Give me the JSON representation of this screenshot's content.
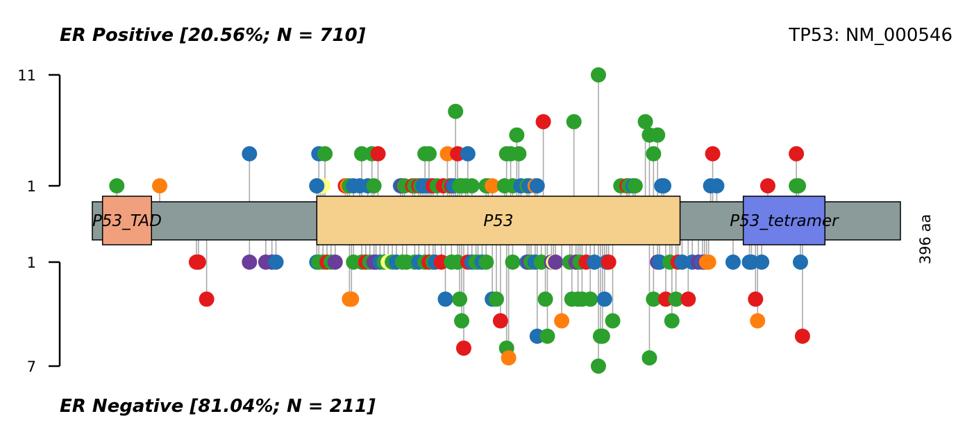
{
  "chart_data": {
    "type": "lollipop",
    "gene_label": "TP53: NM_000546",
    "protein_length": 396,
    "length_label": "396 aa",
    "top_title": "ER Positive [20.56%; N = 710]",
    "bottom_title": "ER Negative [81.04%; N = 211]",
    "top_axis": {
      "ticks": [
        "1",
        "11"
      ],
      "max": 11
    },
    "bottom_axis": {
      "ticks": [
        "1",
        "7"
      ],
      "max": 7
    },
    "colors": {
      "green": "#2ca02c",
      "red": "#e31a1c",
      "blue": "#1f6fb2",
      "orange": "#ff7f0e",
      "purple": "#6a3d9a",
      "yellow": "#ffff88",
      "stem": "#aaaaaa",
      "backbone": "#8a9b9a"
    },
    "domains": [
      {
        "name": "P53_TAD",
        "start": 5,
        "end": 29,
        "color": "#f0a07c"
      },
      {
        "name": "P53",
        "start": 110,
        "end": 288,
        "color": "#f4d08c"
      },
      {
        "name": "P53_tetramer",
        "start": 319,
        "end": 359,
        "color": "#6e7fe8"
      }
    ],
    "top": [
      [
        12,
        1,
        "green"
      ],
      [
        33,
        1,
        "orange"
      ],
      [
        77,
        2,
        "blue"
      ],
      [
        110,
        1,
        "blue"
      ],
      [
        111,
        2,
        "blue"
      ],
      [
        112,
        1,
        "yellow"
      ],
      [
        113,
        1,
        "yellow"
      ],
      [
        114,
        2,
        "green"
      ],
      [
        124,
        1,
        "red"
      ],
      [
        125,
        1,
        "orange"
      ],
      [
        126,
        1,
        "green"
      ],
      [
        128,
        1,
        "blue"
      ],
      [
        131,
        1,
        "blue"
      ],
      [
        132,
        2,
        "green"
      ],
      [
        135,
        1,
        "blue"
      ],
      [
        137,
        2,
        "green"
      ],
      [
        138,
        1,
        "green"
      ],
      [
        140,
        2,
        "red"
      ],
      [
        151,
        1,
        "blue"
      ],
      [
        152,
        1,
        "purple"
      ],
      [
        153,
        1,
        "green"
      ],
      [
        157,
        1,
        "red"
      ],
      [
        158,
        1,
        "green"
      ],
      [
        160,
        1,
        "red"
      ],
      [
        161,
        1,
        "green"
      ],
      [
        162,
        1,
        "blue"
      ],
      [
        163,
        2,
        "green"
      ],
      [
        164,
        1,
        "blue"
      ],
      [
        165,
        2,
        "green"
      ],
      [
        166,
        1,
        "blue"
      ],
      [
        167,
        1,
        "red"
      ],
      [
        169,
        1,
        "green"
      ],
      [
        172,
        1,
        "red"
      ],
      [
        174,
        2,
        "orange"
      ],
      [
        175,
        1,
        "green"
      ],
      [
        176,
        1,
        "red"
      ],
      [
        177,
        1,
        "blue"
      ],
      [
        178,
        5,
        "green"
      ],
      [
        179,
        2,
        "red"
      ],
      [
        180,
        1,
        "green"
      ],
      [
        181,
        1,
        "green"
      ],
      [
        183,
        1,
        "green"
      ],
      [
        184,
        2,
        "blue"
      ],
      [
        186,
        1,
        "green"
      ],
      [
        193,
        1,
        "green"
      ],
      [
        194,
        1,
        "green"
      ],
      [
        196,
        1,
        "orange"
      ],
      [
        202,
        1,
        "green"
      ],
      [
        203,
        2,
        "green"
      ],
      [
        205,
        2,
        "green"
      ],
      [
        206,
        1,
        "green"
      ],
      [
        208,
        3,
        "green"
      ],
      [
        209,
        2,
        "green"
      ],
      [
        210,
        1,
        "blue"
      ],
      [
        213,
        1,
        "green"
      ],
      [
        214,
        1,
        "blue"
      ],
      [
        217,
        1,
        "orange"
      ],
      [
        218,
        1,
        "blue"
      ],
      [
        221,
        4,
        "red"
      ],
      [
        110,
        1,
        "blue"
      ],
      [
        248,
        11,
        "green"
      ],
      [
        236,
        4,
        "green"
      ],
      [
        259,
        1,
        "green"
      ],
      [
        262,
        1,
        "red"
      ],
      [
        263,
        1,
        "green"
      ],
      [
        265,
        1,
        "blue"
      ],
      [
        266,
        1,
        "green"
      ],
      [
        271,
        4,
        "green"
      ],
      [
        273,
        3,
        "green"
      ],
      [
        275,
        2,
        "green"
      ],
      [
        277,
        3,
        "green"
      ],
      [
        279,
        1,
        "blue"
      ],
      [
        280,
        1,
        "blue"
      ],
      [
        303,
        1,
        "blue"
      ],
      [
        304,
        2,
        "red"
      ],
      [
        306,
        1,
        "blue"
      ],
      [
        331,
        1,
        "red"
      ],
      [
        345,
        1,
        "green"
      ],
      [
        346,
        1,
        "green"
      ],
      [
        345,
        2,
        "red"
      ]
    ],
    "bottom": [
      [
        51,
        1,
        "red"
      ],
      [
        52,
        1,
        "red"
      ],
      [
        56,
        2,
        "red"
      ],
      [
        77,
        1,
        "purple"
      ],
      [
        85,
        1,
        "purple"
      ],
      [
        88,
        1,
        "purple"
      ],
      [
        90,
        1,
        "blue"
      ],
      [
        110,
        1,
        "blue"
      ],
      [
        111,
        1,
        "green"
      ],
      [
        113,
        1,
        "green"
      ],
      [
        115,
        1,
        "red"
      ],
      [
        117,
        1,
        "green"
      ],
      [
        119,
        1,
        "purple"
      ],
      [
        126,
        2,
        "orange"
      ],
      [
        127,
        2,
        "orange"
      ],
      [
        128,
        1,
        "green"
      ],
      [
        132,
        1,
        "green"
      ],
      [
        134,
        1,
        "red"
      ],
      [
        136,
        1,
        "green"
      ],
      [
        138,
        1,
        "purple"
      ],
      [
        139,
        1,
        "purple"
      ],
      [
        141,
        1,
        "blue"
      ],
      [
        143,
        1,
        "green"
      ],
      [
        145,
        1,
        "yellow"
      ],
      [
        147,
        1,
        "green"
      ],
      [
        149,
        1,
        "blue"
      ],
      [
        152,
        1,
        "green"
      ],
      [
        154,
        1,
        "green"
      ],
      [
        158,
        1,
        "green"
      ],
      [
        160,
        1,
        "blue"
      ],
      [
        163,
        1,
        "green"
      ],
      [
        165,
        1,
        "red"
      ],
      [
        167,
        1,
        "green"
      ],
      [
        168,
        1,
        "blue"
      ],
      [
        171,
        1,
        "red"
      ],
      [
        173,
        2,
        "blue"
      ],
      [
        176,
        1,
        "green"
      ],
      [
        179,
        1,
        "green"
      ],
      [
        180,
        2,
        "green"
      ],
      [
        181,
        3,
        "green"
      ],
      [
        182,
        5,
        "red"
      ],
      [
        184,
        1,
        "red"
      ],
      [
        186,
        1,
        "blue"
      ],
      [
        188,
        1,
        "green"
      ],
      [
        189,
        1,
        "green"
      ],
      [
        191,
        1,
        "blue"
      ],
      [
        193,
        1,
        "green"
      ],
      [
        196,
        2,
        "blue"
      ],
      [
        198,
        2,
        "green"
      ],
      [
        200,
        3,
        "red"
      ],
      [
        203,
        5,
        "green"
      ],
      [
        204,
        6,
        "orange"
      ],
      [
        206,
        1,
        "green"
      ],
      [
        213,
        1,
        "blue"
      ],
      [
        214,
        1,
        "purple"
      ],
      [
        215,
        1,
        "green"
      ],
      [
        217,
        1,
        "blue"
      ],
      [
        218,
        4,
        "blue"
      ],
      [
        220,
        1,
        "green"
      ],
      [
        222,
        2,
        "green"
      ],
      [
        223,
        4,
        "green"
      ],
      [
        225,
        1,
        "purple"
      ],
      [
        226,
        1,
        "yellow"
      ],
      [
        227,
        1,
        "purple"
      ],
      [
        230,
        3,
        "orange"
      ],
      [
        234,
        1,
        "green"
      ],
      [
        235,
        2,
        "green"
      ],
      [
        237,
        1,
        "purple"
      ],
      [
        238,
        2,
        "green"
      ],
      [
        239,
        1,
        "green"
      ],
      [
        240,
        2,
        "green"
      ],
      [
        242,
        1,
        "red"
      ],
      [
        244,
        2,
        "green"
      ],
      [
        246,
        1,
        "blue"
      ],
      [
        248,
        7,
        "green"
      ],
      [
        249,
        4,
        "green"
      ],
      [
        250,
        4,
        "green"
      ],
      [
        251,
        2,
        "blue"
      ],
      [
        252,
        1,
        "blue"
      ],
      [
        253,
        1,
        "red"
      ],
      [
        255,
        3,
        "green"
      ],
      [
        273,
        6,
        "green"
      ],
      [
        275,
        2,
        "green"
      ],
      [
        277,
        1,
        "purple"
      ],
      [
        278,
        1,
        "blue"
      ],
      [
        281,
        2,
        "red"
      ],
      [
        283,
        1,
        "green"
      ],
      [
        284,
        3,
        "green"
      ],
      [
        286,
        2,
        "green"
      ],
      [
        287,
        1,
        "red"
      ],
      [
        289,
        1,
        "blue"
      ],
      [
        292,
        2,
        "red"
      ],
      [
        294,
        1,
        "blue"
      ],
      [
        297,
        1,
        "purple"
      ],
      [
        299,
        1,
        "blue"
      ],
      [
        300,
        1,
        "purple"
      ],
      [
        301,
        1,
        "orange"
      ],
      [
        302,
        1,
        "orange"
      ],
      [
        314,
        1,
        "blue"
      ],
      [
        322,
        1,
        "blue"
      ],
      [
        323,
        1,
        "blue"
      ],
      [
        325,
        2,
        "red"
      ],
      [
        326,
        3,
        "orange"
      ],
      [
        328,
        1,
        "blue"
      ],
      [
        347,
        1,
        "blue"
      ],
      [
        348,
        4,
        "red"
      ]
    ]
  }
}
